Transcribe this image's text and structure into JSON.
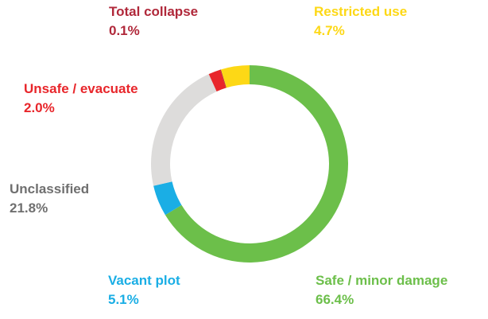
{
  "chart_data": {
    "type": "donut",
    "categories": [
      "Safe / minor damage",
      "Vacant plot",
      "Unclassified",
      "Unsafe / evacuate",
      "Total collapse",
      "Restricted use"
    ],
    "values": [
      66.4,
      5.1,
      21.8,
      2.0,
      0.1,
      4.7
    ],
    "value_labels": [
      "66.4%",
      "5.1%",
      "21.8%",
      "2.0%",
      "0.1%",
      "4.7%"
    ],
    "colors": [
      "#6cbf4a",
      "#1aaee5",
      "#dddcdb",
      "#e8262b",
      "#a71e34",
      "#fdd816"
    ],
    "label_colors": [
      "#6cbf4a",
      "#1aaee5",
      "#6f6f6f",
      "#e8262b",
      "#b0283a",
      "#fdd816"
    ]
  }
}
